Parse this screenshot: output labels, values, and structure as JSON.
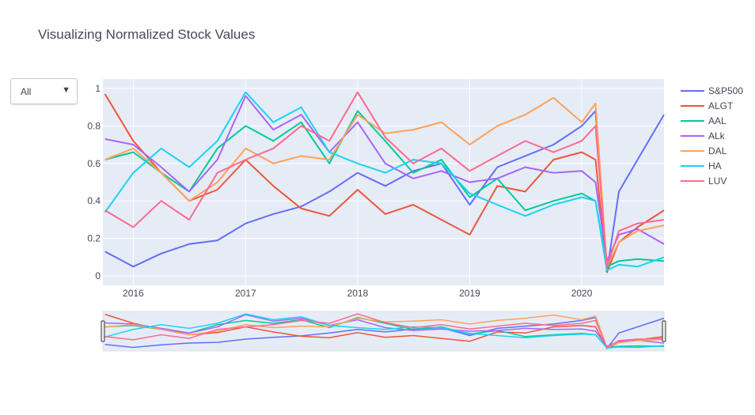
{
  "title": "Visualizing Normalized Stock Values",
  "dropdown": {
    "selected": "All",
    "arrow": "▼"
  },
  "colors": {
    "plot_bg": "#e5ecf6",
    "grid": "#ffffff",
    "text": "#444a5a"
  },
  "chart_data": {
    "type": "line",
    "title": "Visualizing Normalized Stock Values",
    "x_range": [
      "2015-09-24",
      "2020-09-25"
    ],
    "ylim": [
      -0.05,
      1.05
    ],
    "x_ticks": [
      "2016",
      "2017",
      "2018",
      "2019",
      "2020"
    ],
    "y_ticks": [
      "0",
      "0.2",
      "0.4",
      "0.6",
      "0.8",
      "1"
    ],
    "grid": true,
    "legend": "right",
    "rangeslider": true,
    "x": [
      "2015-10-01",
      "2016-01-01",
      "2016-04-01",
      "2016-07-01",
      "2016-10-01",
      "2017-01-01",
      "2017-04-01",
      "2017-07-01",
      "2017-10-01",
      "2018-01-01",
      "2018-04-01",
      "2018-07-01",
      "2018-10-01",
      "2019-01-01",
      "2019-04-01",
      "2019-07-01",
      "2019-10-01",
      "2020-01-01",
      "2020-02-15",
      "2020-03-23",
      "2020-05-01",
      "2020-07-01",
      "2020-09-25"
    ],
    "series": [
      {
        "name": "S&P500",
        "color": "#636efa",
        "values": [
          0.13,
          0.05,
          0.12,
          0.17,
          0.19,
          0.28,
          0.33,
          0.37,
          0.45,
          0.55,
          0.48,
          0.56,
          0.6,
          0.38,
          0.58,
          0.64,
          0.7,
          0.8,
          0.88,
          0.02,
          0.45,
          0.62,
          0.86
        ]
      },
      {
        "name": "ALGT",
        "color": "#ef553b",
        "values": [
          0.97,
          0.72,
          0.55,
          0.4,
          0.46,
          0.62,
          0.48,
          0.36,
          0.32,
          0.46,
          0.33,
          0.38,
          0.3,
          0.22,
          0.48,
          0.45,
          0.62,
          0.66,
          0.62,
          0.02,
          0.18,
          0.26,
          0.35
        ]
      },
      {
        "name": "AAL",
        "color": "#00cc96",
        "values": [
          0.62,
          0.66,
          0.55,
          0.45,
          0.68,
          0.8,
          0.72,
          0.82,
          0.6,
          0.88,
          0.72,
          0.55,
          0.62,
          0.42,
          0.52,
          0.35,
          0.4,
          0.44,
          0.4,
          0.05,
          0.08,
          0.09,
          0.08
        ]
      },
      {
        "name": "ALk",
        "color": "#ab63fa",
        "values": [
          0.73,
          0.7,
          0.58,
          0.45,
          0.62,
          0.96,
          0.78,
          0.86,
          0.66,
          0.82,
          0.6,
          0.52,
          0.56,
          0.5,
          0.52,
          0.58,
          0.55,
          0.56,
          0.5,
          0.08,
          0.22,
          0.25,
          0.17
        ]
      },
      {
        "name": "DAL",
        "color": "#ffa15a",
        "values": [
          0.62,
          0.68,
          0.55,
          0.4,
          0.5,
          0.68,
          0.6,
          0.64,
          0.62,
          0.86,
          0.76,
          0.78,
          0.82,
          0.7,
          0.8,
          0.86,
          0.95,
          0.82,
          0.92,
          0.05,
          0.18,
          0.24,
          0.27
        ]
      },
      {
        "name": "HA",
        "color": "#19d3f3",
        "values": [
          0.34,
          0.55,
          0.68,
          0.58,
          0.72,
          0.98,
          0.82,
          0.9,
          0.66,
          0.6,
          0.55,
          0.62,
          0.6,
          0.44,
          0.38,
          0.32,
          0.38,
          0.42,
          0.4,
          0.03,
          0.06,
          0.05,
          0.1
        ]
      },
      {
        "name": "LUV",
        "color": "#fe6a8d",
        "values": [
          0.35,
          0.26,
          0.4,
          0.3,
          0.55,
          0.62,
          0.68,
          0.8,
          0.72,
          0.98,
          0.74,
          0.6,
          0.68,
          0.56,
          0.64,
          0.72,
          0.66,
          0.72,
          0.8,
          0.05,
          0.24,
          0.28,
          0.3
        ]
      }
    ]
  }
}
